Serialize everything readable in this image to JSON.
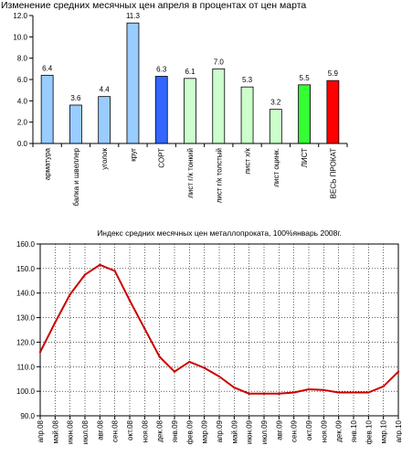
{
  "chart_data": [
    {
      "type": "bar",
      "title": "Изменение средних месячных цен апреля в процентах от цен марта",
      "categories": [
        "арматура",
        "балка и швеллер",
        "уголок",
        "круг",
        "СОРТ",
        "лист г/к тонкий",
        "лист г/к толстый",
        "лист х/к",
        "лист оцинк.",
        "ЛИСТ",
        "ВЕСЬ ПРОКАТ"
      ],
      "values": [
        6.4,
        3.6,
        4.4,
        11.3,
        6.3,
        6.1,
        7.0,
        5.3,
        3.2,
        5.5,
        5.9
      ],
      "value_labels": [
        "6.4",
        "3.6",
        "4.4",
        "11.3",
        "6.3",
        "6.1",
        "7.0",
        "5.3",
        "3.2",
        "5.5",
        "5.9"
      ],
      "bar_colors": [
        "#99ccff",
        "#99ccff",
        "#99ccff",
        "#99ccff",
        "#3366ff",
        "#ccffcc",
        "#ccffcc",
        "#ccffcc",
        "#ccffcc",
        "#33ff33",
        "#ff0000"
      ],
      "yticks": [
        "0.0",
        "2.0",
        "4.0",
        "6.0",
        "8.0",
        "10.0",
        "12.0"
      ],
      "ylim": [
        0,
        12
      ],
      "xlabel": "",
      "ylabel": "",
      "grid": false
    },
    {
      "type": "line",
      "title": "Индекс средних месячных цен металлопроката, 100%январь 2008г.",
      "x": [
        "апр.08",
        "май.08",
        "июн.08",
        "июл.08",
        "авг.08",
        "сен.08",
        "окт.08",
        "ноя.08",
        "дек.08",
        "янв.09",
        "фев.09",
        "мар.09",
        "апр.09",
        "май.09",
        "июн.09",
        "июл.09",
        "авг.09",
        "сен.09",
        "окт.09",
        "ноя.09",
        "дек.09",
        "янв.10",
        "фев.10",
        "мар.10",
        "апр.10"
      ],
      "series": [
        {
          "values": [
            116.0,
            128.0,
            139.5,
            147.5,
            151.5,
            149.0,
            137.0,
            125.5,
            114.0,
            108.0,
            112.0,
            109.5,
            106.0,
            101.5,
            99.0,
            99.0,
            99.0,
            99.5,
            100.8,
            100.5,
            99.5,
            99.5,
            99.5,
            102.0,
            108.0
          ],
          "color": "#cc0000"
        }
      ],
      "yticks": [
        "90.0",
        "100.0",
        "110.0",
        "120.0",
        "130.0",
        "140.0",
        "150.0",
        "160.0"
      ],
      "ylim": [
        90,
        160
      ],
      "xlabel": "",
      "ylabel": "",
      "grid": true,
      "plot_background": "#ffffff"
    }
  ]
}
